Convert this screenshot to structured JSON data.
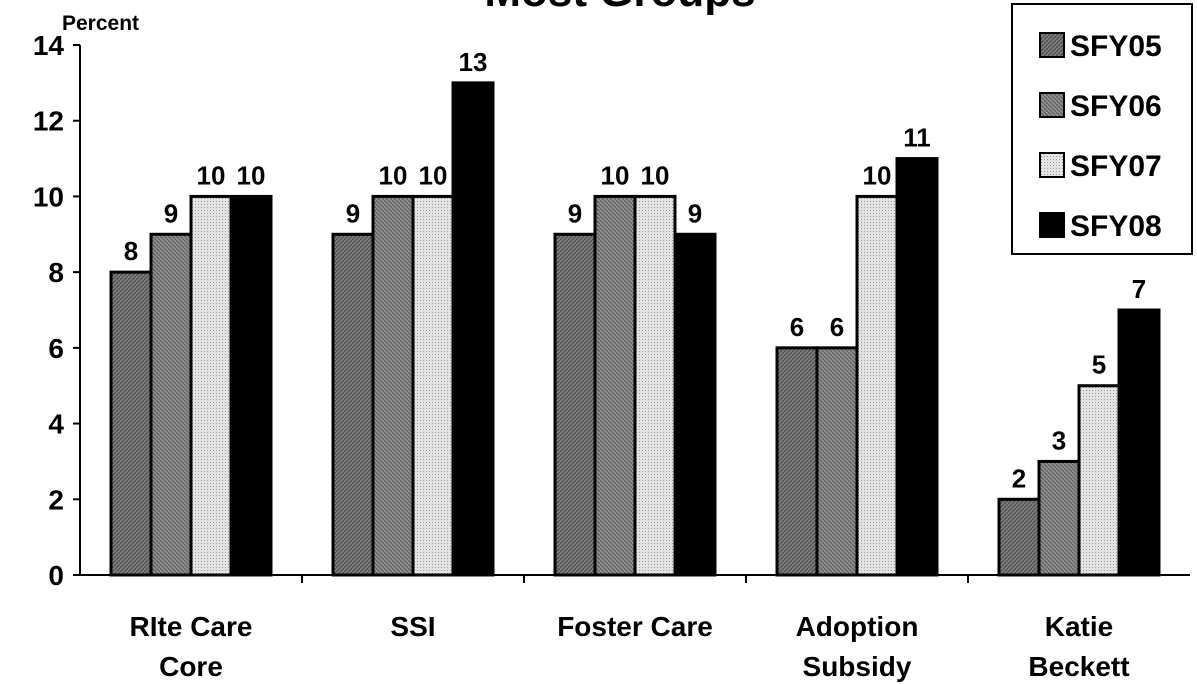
{
  "chart_data": {
    "type": "bar",
    "title": "Most Groups",
    "ylabel": "Percent",
    "xlabel": "",
    "ylim": [
      0,
      14
    ],
    "yticks": [
      "0",
      "2",
      "4",
      "6",
      "8",
      "10",
      "12",
      "14"
    ],
    "grid": false,
    "legend_position": "top-right",
    "categories": [
      [
        "RIte Care",
        "Core"
      ],
      [
        "SSI"
      ],
      [
        "Foster Care"
      ],
      [
        "Adoption",
        "Subsidy"
      ],
      [
        "Katie",
        "Beckett"
      ]
    ],
    "series": [
      {
        "name": "SFY05",
        "values": [
          8,
          9,
          9,
          6,
          2
        ],
        "color": "#7a7a7a",
        "pattern": "hatch-dark"
      },
      {
        "name": "SFY06",
        "values": [
          9,
          10,
          10,
          6,
          3
        ],
        "color": "#888888",
        "pattern": "hatch-mid"
      },
      {
        "name": "SFY07",
        "values": [
          10,
          10,
          10,
          10,
          5
        ],
        "color": "#d9d9d9",
        "pattern": "dots-light"
      },
      {
        "name": "SFY08",
        "values": [
          10,
          13,
          9,
          11,
          7
        ],
        "color": "#000000",
        "pattern": "solid"
      }
    ]
  }
}
